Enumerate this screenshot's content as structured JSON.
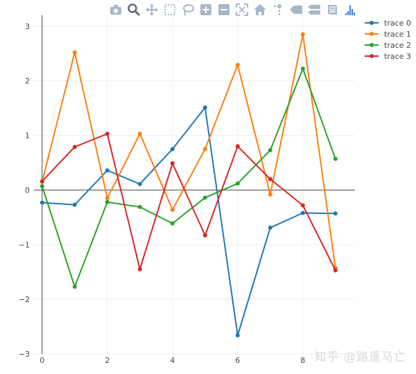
{
  "modebar": {
    "buttons": [
      {
        "icon": "camera-icon"
      },
      {
        "icon": "zoom-icon"
      },
      {
        "icon": "pan-icon"
      },
      {
        "icon": "box-select-icon"
      },
      {
        "icon": "lasso-select-icon"
      },
      {
        "icon": "zoom-in-icon"
      },
      {
        "icon": "zoom-out-icon"
      },
      {
        "icon": "autoscale-icon"
      },
      {
        "icon": "reset-axes-icon"
      },
      {
        "icon": "spike-lines-icon"
      },
      {
        "icon": "hover-closest-icon"
      },
      {
        "icon": "hover-compare-icon"
      },
      {
        "icon": "edit-chart-icon"
      },
      {
        "icon": "plotly-logo-icon"
      }
    ],
    "icon_color": "#a8b7c8",
    "active_color": "#5a6b7c",
    "logo_color": "#447adb"
  },
  "watermark": "知乎 @路遥马亡",
  "chart_data": {
    "type": "line",
    "title": "",
    "xlabel": "",
    "ylabel": "",
    "x": [
      0,
      1,
      2,
      3,
      4,
      5,
      6,
      7,
      8,
      9
    ],
    "xlim": [
      -0.25,
      9.6
    ],
    "ylim": [
      -3,
      3.2
    ],
    "xticks": [
      0,
      2,
      4,
      6,
      8
    ],
    "yticks": [
      -3,
      -2,
      -1,
      0,
      1,
      2,
      3
    ],
    "ytick_labels": [
      "−3",
      "−2",
      "−1",
      "0",
      "1",
      "2",
      "3"
    ],
    "grid": true,
    "zeroline": true,
    "legend_position": "top-right",
    "series": [
      {
        "name": "trace 0",
        "color": "#1f77b4",
        "values": [
          -0.23,
          -0.27,
          0.36,
          0.11,
          0.75,
          1.51,
          -2.66,
          -0.69,
          -0.42,
          -0.43
        ]
      },
      {
        "name": "trace 1",
        "color": "#ff7f0e",
        "values": [
          0.15,
          2.52,
          -0.15,
          1.03,
          -0.36,
          0.75,
          2.29,
          -0.08,
          2.85,
          -1.43
        ]
      },
      {
        "name": "trace 2",
        "color": "#2ca02c",
        "values": [
          0.07,
          -1.77,
          -0.22,
          -0.31,
          -0.61,
          -0.14,
          0.12,
          0.73,
          2.22,
          0.57
        ]
      },
      {
        "name": "trace 3",
        "color": "#d62728",
        "values": [
          0.16,
          0.79,
          1.03,
          -1.45,
          0.49,
          -0.83,
          0.8,
          0.2,
          -0.28,
          -1.47
        ]
      }
    ]
  }
}
